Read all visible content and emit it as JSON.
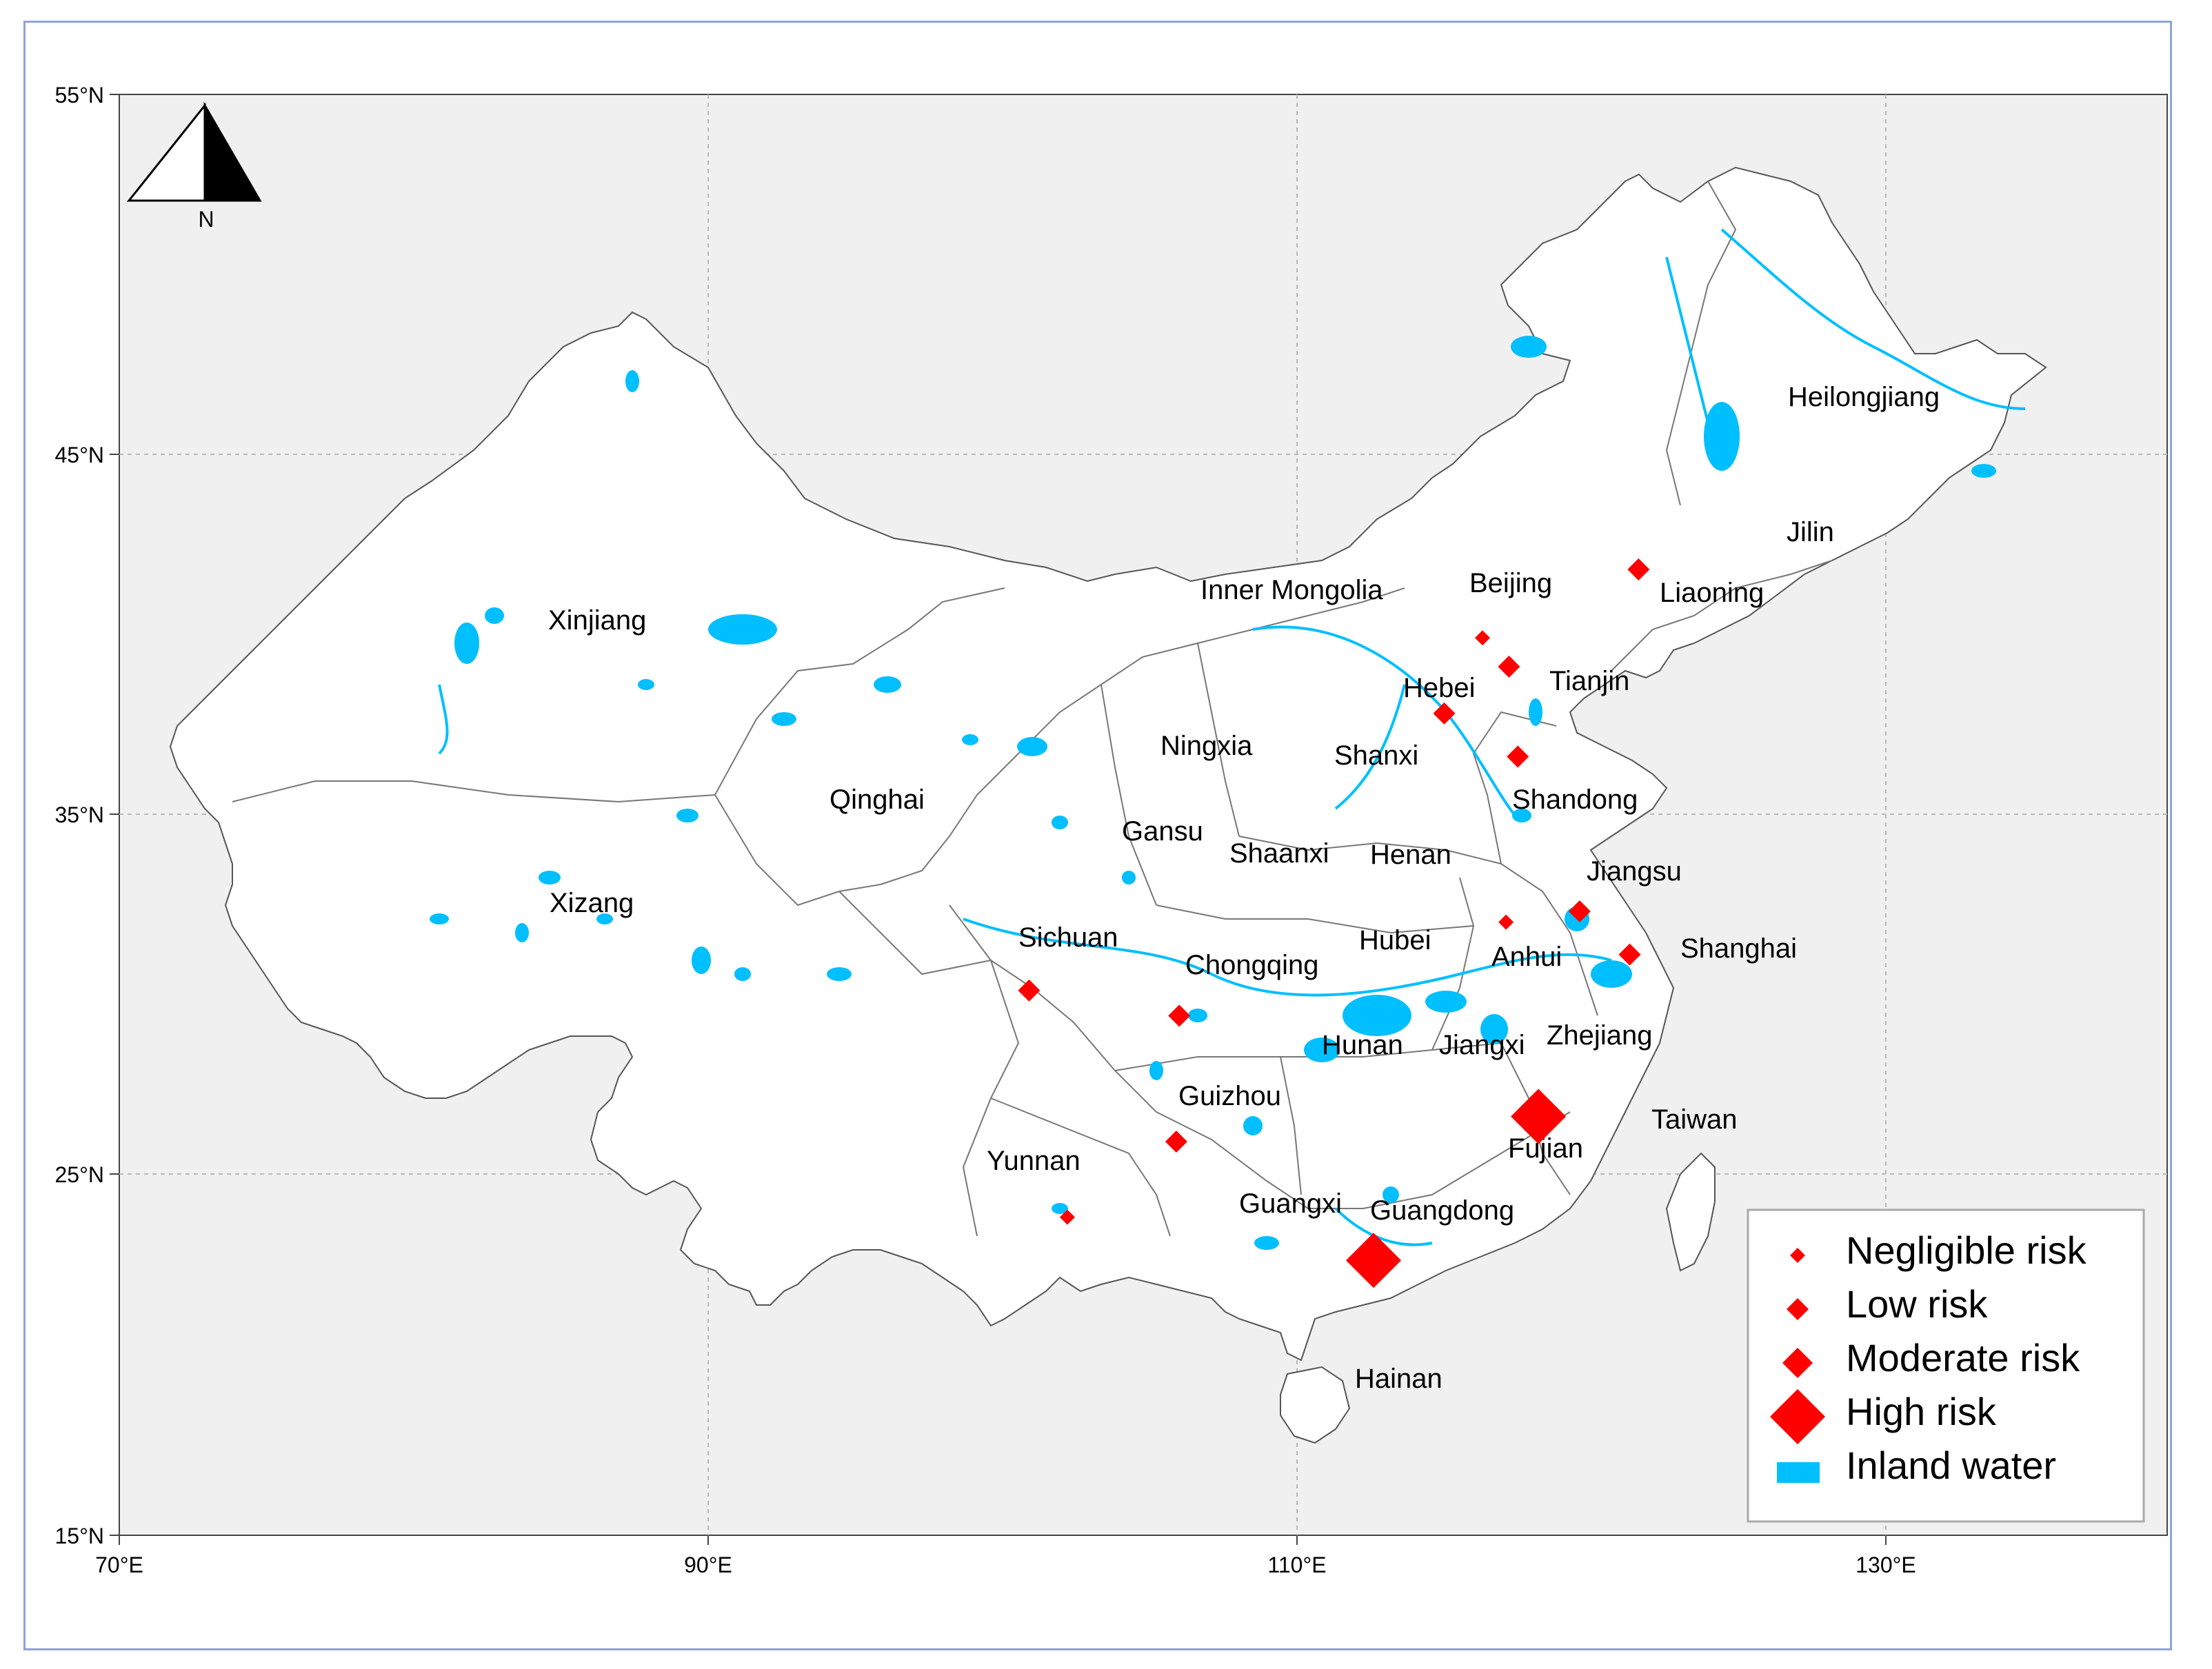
{
  "map": {
    "latitude_ticks": [
      "55°N",
      "45°N",
      "35°N",
      "25°N",
      "15°N"
    ],
    "longitude_ticks": [
      "70°E",
      "90°E",
      "110°E",
      "130°E"
    ],
    "north_arrow_label": "N",
    "colors": {
      "land": "#ffffff",
      "ocean": "#f0f0f0",
      "water": "#00bfff",
      "risk": "#ff0000",
      "border": "#555555"
    },
    "provinces": [
      {
        "name": "Xinjiang"
      },
      {
        "name": "Xizang"
      },
      {
        "name": "Qinghai"
      },
      {
        "name": "Gansu"
      },
      {
        "name": "Inner Mongolia"
      },
      {
        "name": "Ningxia"
      },
      {
        "name": "Shaanxi"
      },
      {
        "name": "Shanxi"
      },
      {
        "name": "Hebei"
      },
      {
        "name": "Beijing"
      },
      {
        "name": "Tianjin"
      },
      {
        "name": "Liaoning"
      },
      {
        "name": "Jilin"
      },
      {
        "name": "Heilongjiang"
      },
      {
        "name": "Shandong"
      },
      {
        "name": "Henan"
      },
      {
        "name": "Jiangsu"
      },
      {
        "name": "Shanghai"
      },
      {
        "name": "Anhui"
      },
      {
        "name": "Hubei"
      },
      {
        "name": "Sichuan"
      },
      {
        "name": "Chongqing"
      },
      {
        "name": "Hunan"
      },
      {
        "name": "Jiangxi"
      },
      {
        "name": "Zhejiang"
      },
      {
        "name": "Fujian"
      },
      {
        "name": "Taiwan"
      },
      {
        "name": "Guizhou"
      },
      {
        "name": "Yunnan"
      },
      {
        "name": "Guangxi"
      },
      {
        "name": "Guangdong"
      },
      {
        "name": "Hainan"
      }
    ],
    "risk_markers": [
      {
        "site": "Beijing",
        "lon": 116.3,
        "lat": 39.9,
        "level": "negligible"
      },
      {
        "site": "Tianjin",
        "lon": 117.2,
        "lat": 39.1,
        "level": "low"
      },
      {
        "site": "Hebei",
        "lon": 115.0,
        "lat": 37.8,
        "level": "low"
      },
      {
        "site": "Liaoning",
        "lon": 121.6,
        "lat": 41.8,
        "level": "low"
      },
      {
        "site": "Shandong",
        "lon": 117.5,
        "lat": 36.6,
        "level": "low"
      },
      {
        "site": "Jiangsu",
        "lon": 119.6,
        "lat": 32.3,
        "level": "low"
      },
      {
        "site": "Anhui",
        "lon": 117.1,
        "lat": 32.0,
        "level": "negligible"
      },
      {
        "site": "Shanghai",
        "lon": 121.3,
        "lat": 31.1,
        "level": "low"
      },
      {
        "site": "Sichuan",
        "lon": 100.9,
        "lat": 30.1,
        "level": "low"
      },
      {
        "site": "Chongqing",
        "lon": 106.0,
        "lat": 29.4,
        "level": "low"
      },
      {
        "site": "Guizhou",
        "lon": 105.9,
        "lat": 25.9,
        "level": "low"
      },
      {
        "site": "Yunnan",
        "lon": 102.2,
        "lat": 23.8,
        "level": "negligible"
      },
      {
        "site": "Fujian",
        "lon": 118.2,
        "lat": 26.6,
        "level": "high"
      },
      {
        "site": "Guangdong",
        "lon": 112.6,
        "lat": 22.6,
        "level": "high"
      }
    ],
    "legend": {
      "items": [
        {
          "label": "Negligible risk",
          "symbol": "negligible"
        },
        {
          "label": "Low risk",
          "symbol": "low"
        },
        {
          "label": "Moderate risk",
          "symbol": "moderate"
        },
        {
          "label": "High risk",
          "symbol": "high"
        },
        {
          "label": "Inland water",
          "symbol": "water"
        }
      ]
    }
  }
}
